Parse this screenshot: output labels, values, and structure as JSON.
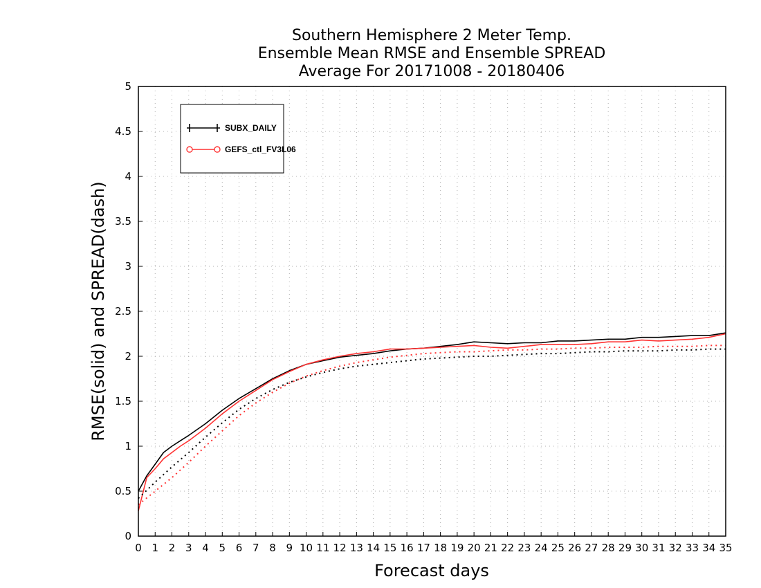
{
  "chart_data": {
    "type": "line",
    "title_lines": [
      "Southern Hemisphere 2 Meter Temp.",
      "Ensemble Mean RMSE and Ensemble SPREAD",
      "Average For 20171008 - 20180406"
    ],
    "xlabel": "Forecast days",
    "ylabel": "RMSE(solid) and SPREAD(dash)",
    "xlim": [
      0,
      35
    ],
    "ylim": [
      0,
      5
    ],
    "x_ticks": [
      0,
      1,
      2,
      3,
      4,
      5,
      6,
      7,
      8,
      9,
      10,
      11,
      12,
      13,
      14,
      15,
      16,
      17,
      18,
      19,
      20,
      21,
      22,
      23,
      24,
      25,
      26,
      27,
      28,
      29,
      30,
      31,
      32,
      33,
      34,
      35
    ],
    "y_ticks": [
      0,
      0.5,
      1,
      1.5,
      2,
      2.5,
      3,
      3.5,
      4,
      4.5,
      5
    ],
    "y_tick_labels": [
      "0",
      "0.5",
      "1",
      "1.5",
      "2",
      "2.5",
      "3",
      "3.5",
      "4",
      "4.5",
      "5"
    ],
    "grid": true,
    "legend_position": "top-left",
    "series": [
      {
        "name": "SUBX_DAILY",
        "metric": "RMSE",
        "color": "#000000",
        "style": "solid",
        "x": [
          0,
          0.5,
          1,
          1.5,
          2,
          2.5,
          3,
          4,
          5,
          6,
          7,
          8,
          9,
          10,
          11,
          12,
          13,
          14,
          15,
          16,
          17,
          18,
          19,
          20,
          21,
          22,
          23,
          24,
          25,
          26,
          27,
          28,
          29,
          30,
          31,
          32,
          33,
          34,
          35
        ],
        "y": [
          0.5,
          0.67,
          0.8,
          0.93,
          1.0,
          1.06,
          1.12,
          1.25,
          1.4,
          1.53,
          1.64,
          1.75,
          1.84,
          1.91,
          1.95,
          1.99,
          2.01,
          2.03,
          2.06,
          2.08,
          2.09,
          2.11,
          2.13,
          2.16,
          2.15,
          2.14,
          2.15,
          2.15,
          2.17,
          2.17,
          2.18,
          2.19,
          2.19,
          2.21,
          2.21,
          2.22,
          2.23,
          2.23,
          2.26
        ]
      },
      {
        "name": "GEFS_ctl_FV3L06",
        "metric": "RMSE",
        "color": "#ff3333",
        "style": "solid",
        "x": [
          0,
          0.5,
          1,
          1.5,
          2,
          2.5,
          3,
          4,
          5,
          6,
          7,
          8,
          9,
          10,
          11,
          12,
          13,
          14,
          15,
          16,
          17,
          18,
          19,
          20,
          21,
          22,
          23,
          24,
          25,
          26,
          27,
          28,
          29,
          30,
          31,
          32,
          33,
          34,
          35
        ],
        "y": [
          0.28,
          0.65,
          0.75,
          0.86,
          0.93,
          1.0,
          1.06,
          1.2,
          1.36,
          1.5,
          1.62,
          1.74,
          1.83,
          1.91,
          1.96,
          2.0,
          2.03,
          2.05,
          2.08,
          2.08,
          2.09,
          2.1,
          2.11,
          2.12,
          2.1,
          2.09,
          2.11,
          2.13,
          2.13,
          2.13,
          2.14,
          2.16,
          2.16,
          2.18,
          2.17,
          2.18,
          2.19,
          2.21,
          2.25
        ]
      },
      {
        "name": "SUBX_DAILY",
        "metric": "SPREAD",
        "color": "#000000",
        "style": "dotted",
        "x": [
          0,
          1,
          2,
          3,
          4,
          5,
          6,
          7,
          8,
          9,
          10,
          11,
          12,
          13,
          14,
          15,
          16,
          17,
          18,
          19,
          20,
          21,
          22,
          23,
          24,
          25,
          26,
          27,
          28,
          29,
          30,
          31,
          32,
          33,
          34,
          35
        ],
        "y": [
          0.42,
          0.6,
          0.77,
          0.93,
          1.1,
          1.26,
          1.41,
          1.53,
          1.63,
          1.71,
          1.77,
          1.82,
          1.86,
          1.89,
          1.91,
          1.93,
          1.95,
          1.97,
          1.98,
          1.99,
          2.0,
          2.0,
          2.01,
          2.02,
          2.03,
          2.03,
          2.04,
          2.05,
          2.05,
          2.06,
          2.06,
          2.06,
          2.07,
          2.07,
          2.08,
          2.08
        ]
      },
      {
        "name": "GEFS_ctl_FV3L06",
        "metric": "SPREAD",
        "color": "#ff3333",
        "style": "dotted",
        "x": [
          0,
          1,
          2,
          3,
          4,
          5,
          6,
          7,
          8,
          9,
          10,
          11,
          12,
          13,
          14,
          15,
          16,
          17,
          18,
          19,
          20,
          21,
          22,
          23,
          24,
          25,
          26,
          27,
          28,
          29,
          30,
          31,
          32,
          33,
          34,
          35
        ],
        "y": [
          0.35,
          0.5,
          0.65,
          0.82,
          1.0,
          1.17,
          1.34,
          1.48,
          1.6,
          1.7,
          1.78,
          1.84,
          1.89,
          1.93,
          1.96,
          1.99,
          2.01,
          2.03,
          2.04,
          2.05,
          2.05,
          2.06,
          2.07,
          2.07,
          2.08,
          2.08,
          2.09,
          2.09,
          2.1,
          2.1,
          2.1,
          2.11,
          2.11,
          2.11,
          2.12,
          2.12
        ]
      }
    ]
  }
}
